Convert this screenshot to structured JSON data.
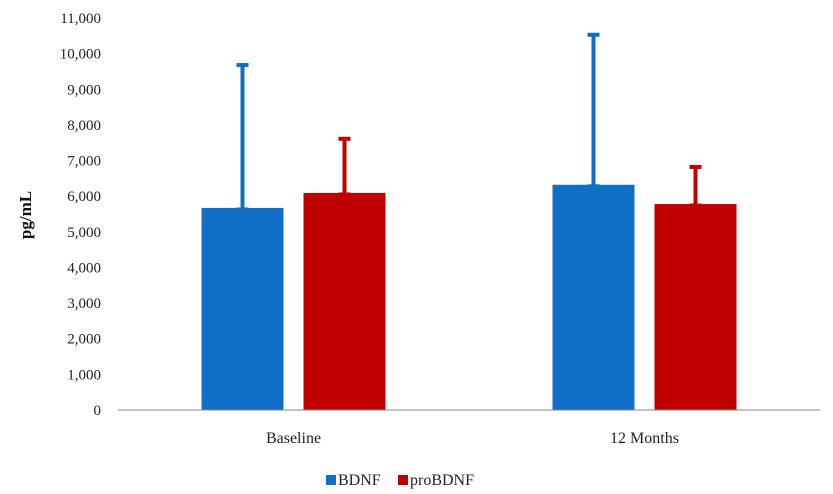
{
  "chart_data": {
    "type": "bar",
    "categories": [
      "Baseline",
      "12 Months"
    ],
    "series": [
      {
        "name": "BDNF",
        "color": "#0F6FC6",
        "values": [
          5670,
          6320
        ],
        "error_upper": [
          9680,
          10530
        ]
      },
      {
        "name": "proBDNF",
        "color": "#C00000",
        "values": [
          6090,
          5780
        ],
        "error_upper": [
          7610,
          6820
        ]
      }
    ],
    "ylabel": "pg/mL",
    "xlabel": "",
    "ylim": [
      0,
      11000
    ],
    "yticks": [
      "0",
      "1,000",
      "2,000",
      "3,000",
      "4,000",
      "5,000",
      "6,000",
      "7,000",
      "8,000",
      "9,000",
      "10,000",
      "11,000"
    ],
    "grid": false,
    "legend_position": "bottom"
  }
}
